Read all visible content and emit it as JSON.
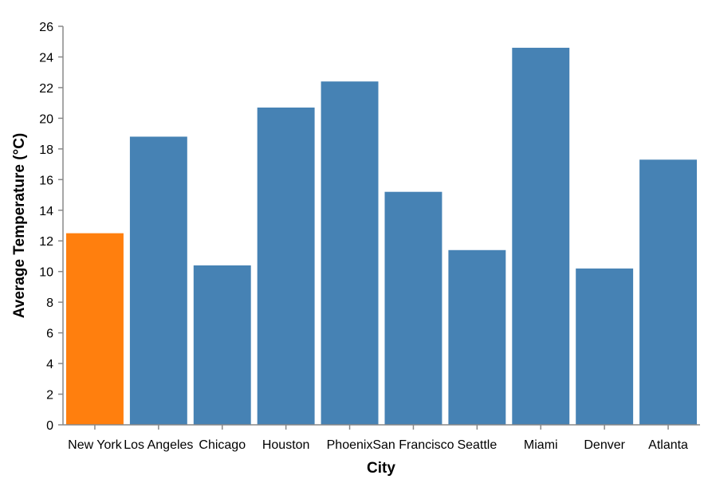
{
  "chart_data": {
    "type": "bar",
    "title": "",
    "xlabel": "City",
    "ylabel": "Average Temperature (°C)",
    "categories": [
      "New York",
      "Los Angeles",
      "Chicago",
      "Houston",
      "Phoenix",
      "San Francisco",
      "Seattle",
      "Miami",
      "Denver",
      "Atlanta"
    ],
    "values": [
      12.5,
      18.8,
      10.4,
      20.7,
      22.4,
      15.2,
      11.4,
      24.6,
      10.2,
      17.3
    ],
    "bar_colors": [
      "#ff7f0e",
      "#4682b4",
      "#4682b4",
      "#4682b4",
      "#4682b4",
      "#4682b4",
      "#4682b4",
      "#4682b4",
      "#4682b4",
      "#4682b4"
    ],
    "ylim": [
      0,
      26
    ],
    "yticks": [
      0,
      2,
      4,
      6,
      8,
      10,
      12,
      14,
      16,
      18,
      20,
      22,
      24,
      26
    ],
    "grid": false,
    "legend": "none"
  }
}
